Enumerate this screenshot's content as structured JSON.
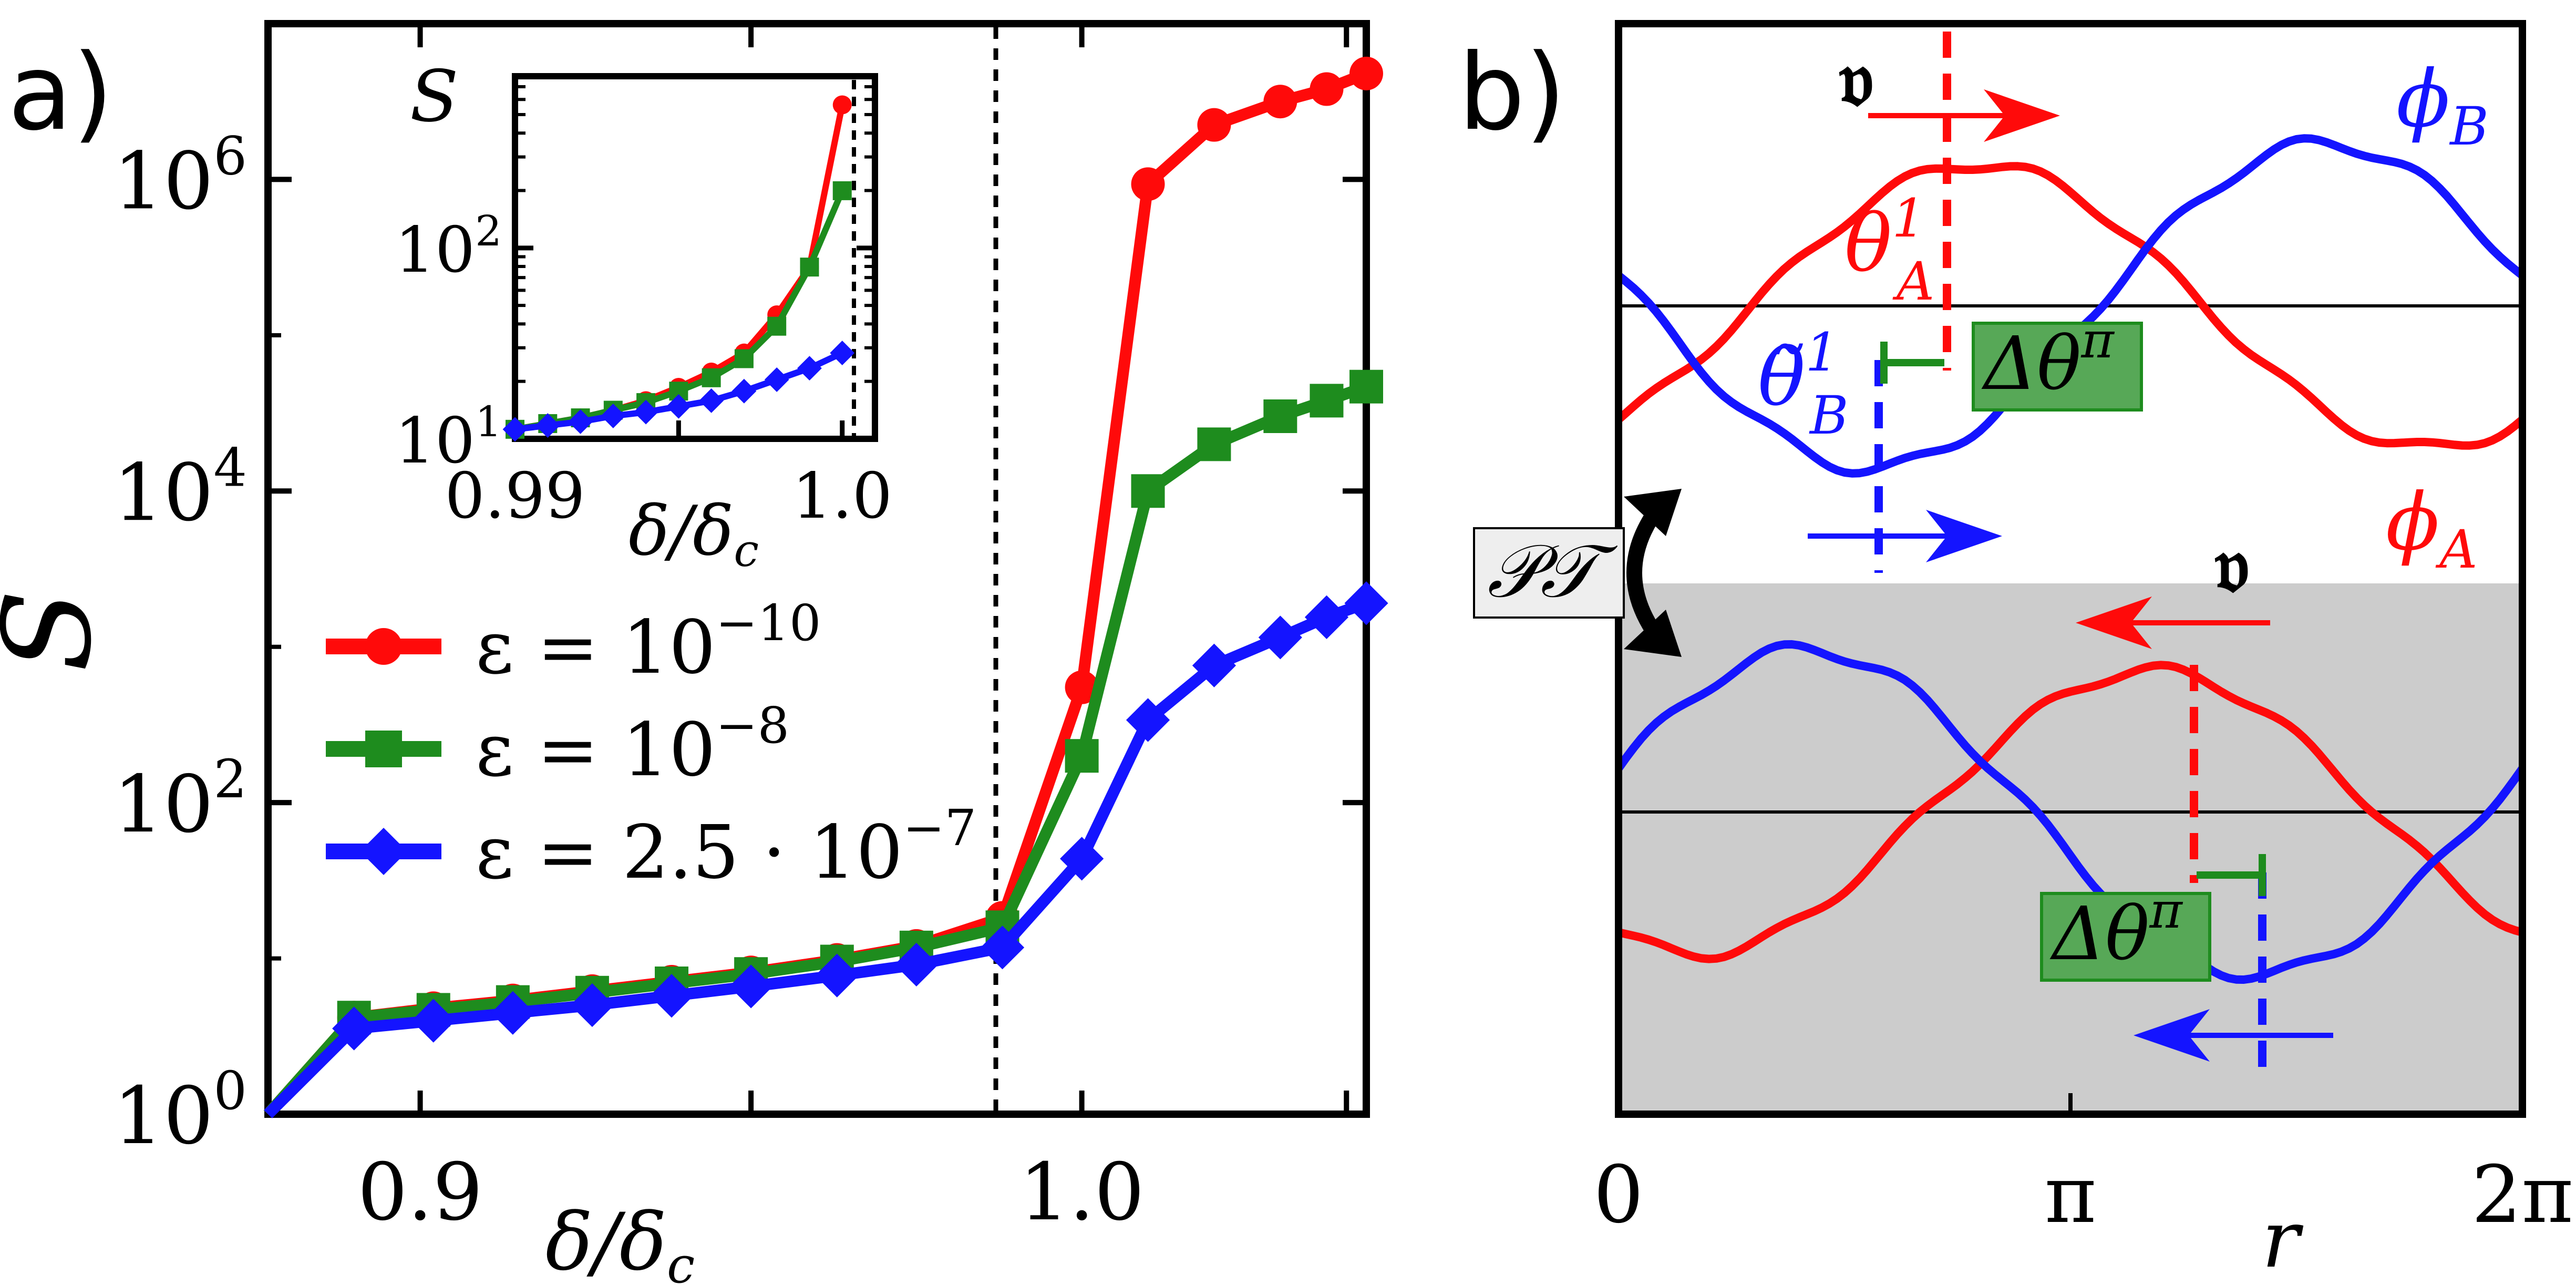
{
  "colors": {
    "red": "#ff0a0a",
    "green": "#1e8c1e",
    "blue": "#1414ff",
    "shade": "#cccccc",
    "boxfill": "#57a857",
    "boxstroke": "#1e8c1e",
    "ptfill": "#eeeeee"
  },
  "panel_a": {
    "label": "a)",
    "xlabel": "δ/δ",
    "xlabel_sub": "c",
    "ylabel": "S",
    "x_ticks": [
      {
        "label": "0.9",
        "value": 0.9
      },
      {
        "label": "1.0",
        "value": 1.0
      }
    ],
    "y_ticks": [
      {
        "base": "10",
        "exp": "0",
        "value": 0
      },
      {
        "base": "10",
        "exp": "2",
        "value": 2
      },
      {
        "base": "10",
        "exp": "4",
        "value": 4
      },
      {
        "base": "10",
        "exp": "6",
        "value": 6
      }
    ],
    "legend": [
      {
        "text": "ε = 10",
        "exp": "−10"
      },
      {
        "text": "ε = 10",
        "exp": "−8"
      },
      {
        "text": "ε = 2.5 · 10",
        "exp": "−7"
      }
    ],
    "inset": {
      "ylabel": "S",
      "xlabel": "δ/δ",
      "xlabel_sub": "c",
      "x_ticks": [
        {
          "label": "0.99",
          "value": 0.99
        },
        {
          "label": "1.0",
          "value": 1.0
        }
      ],
      "y_ticks": [
        {
          "base": "10",
          "exp": "1",
          "value": 1
        },
        {
          "base": "10",
          "exp": "2",
          "value": 2
        }
      ]
    }
  },
  "panel_b": {
    "label": "b)",
    "xlabel": "r",
    "x_ticks": [
      {
        "label": "0",
        "value": 0
      },
      {
        "label": "π",
        "value": 3.14159
      },
      {
        "label": "2π",
        "value": 6.28318
      }
    ],
    "phi_B": "ϕ",
    "phi_B_sub": "B",
    "phi_A": "ϕ",
    "phi_A_sub": "A",
    "theta_A": "θ",
    "theta_A_sup": "1",
    "theta_A_sub": "A",
    "theta_B": "θ̃",
    "theta_B_sup": "1",
    "theta_B_sub": "B",
    "velocity_top": "𝔳",
    "velocity_bottom": "𝔳",
    "delta_top": "Δθ",
    "delta_top_sup": "π",
    "delta_bottom": "Δθ",
    "delta_bottom_sup": "π",
    "pt_label": "𝒫𝒯"
  },
  "chart_data": [
    {
      "type": "line",
      "panel": "a",
      "xlabel": "δ/δc",
      "ylabel": "S",
      "y_scale": "log",
      "xlim": [
        0.877,
        1.043
      ],
      "ylim_log10": [
        0,
        7
      ],
      "grid": false,
      "legend_position": "center-left",
      "vertical_line": 1.0,
      "x": [
        0.877,
        0.89,
        0.902,
        0.914,
        0.926,
        0.938,
        0.95,
        0.963,
        0.975,
        0.988,
        1.0,
        1.01,
        1.02,
        1.03,
        1.037,
        1.043
      ],
      "series": [
        {
          "name": "ε = 10^−10",
          "color": "red",
          "marker": "circle",
          "values_log10": [
            0.0,
            0.62,
            0.68,
            0.73,
            0.79,
            0.85,
            0.91,
            0.99,
            1.08,
            1.26,
            2.74,
            5.97,
            6.35,
            6.5,
            6.58,
            6.68
          ]
        },
        {
          "name": "ε = 10^−8",
          "color": "green",
          "marker": "square",
          "values_log10": [
            0.0,
            0.62,
            0.67,
            0.72,
            0.78,
            0.84,
            0.9,
            0.98,
            1.07,
            1.2,
            2.3,
            4.0,
            4.3,
            4.48,
            4.58,
            4.67
          ]
        },
        {
          "name": "ε = 2.5·10^−7",
          "color": "blue",
          "marker": "diamond",
          "values_log10": [
            0.0,
            0.55,
            0.6,
            0.65,
            0.7,
            0.76,
            0.82,
            0.89,
            0.96,
            1.07,
            1.64,
            2.53,
            2.88,
            3.06,
            3.19,
            3.28
          ]
        }
      ]
    },
    {
      "type": "line",
      "panel": "a-inset",
      "xlabel": "δ/δc",
      "ylabel": "S",
      "y_scale": "log",
      "xlim": [
        0.99,
        1.001
      ],
      "ylim_log10": [
        1.0,
        2.9
      ],
      "vertical_line": 1.0,
      "x": [
        0.99,
        0.991,
        0.992,
        0.993,
        0.994,
        0.995,
        0.996,
        0.997,
        0.998,
        0.999,
        1.0
      ],
      "series": [
        {
          "name": "ε = 10^−10",
          "color": "red",
          "marker": "circle",
          "values_log10": [
            1.05,
            1.08,
            1.11,
            1.15,
            1.2,
            1.27,
            1.35,
            1.45,
            1.65,
            1.9,
            2.75
          ]
        },
        {
          "name": "ε = 10^−8",
          "color": "green",
          "marker": "square",
          "values_log10": [
            1.05,
            1.08,
            1.11,
            1.15,
            1.19,
            1.25,
            1.32,
            1.42,
            1.59,
            1.9,
            2.3
          ]
        },
        {
          "name": "ε = 2.5·10^−7",
          "color": "blue",
          "marker": "diamond",
          "values_log10": [
            1.05,
            1.07,
            1.09,
            1.12,
            1.14,
            1.17,
            1.2,
            1.25,
            1.31,
            1.37,
            1.45
          ]
        }
      ]
    },
    {
      "type": "line",
      "panel": "b",
      "xlabel": "r",
      "xlim": [
        0,
        6.28318
      ],
      "subplots": [
        {
          "name": "top",
          "series": [
            {
              "name": "ϕA",
              "color": "red",
              "phase_peak": 2.5
            },
            {
              "name": "ϕB",
              "color": "blue",
              "phase_peak": 4.9
            }
          ],
          "markers": {
            "theta_A": 2.2,
            "theta_B": 1.6
          }
        },
        {
          "name": "bottom",
          "shaded": true,
          "series": [
            {
              "name": "ϕA",
              "color": "red",
              "phase_peak": 3.7
            },
            {
              "name": "ϕB",
              "color": "blue",
              "phase_peak": 1.3
            }
          ],
          "markers": {
            "theta_A": 3.5,
            "theta_B": 4.0
          }
        }
      ]
    }
  ]
}
